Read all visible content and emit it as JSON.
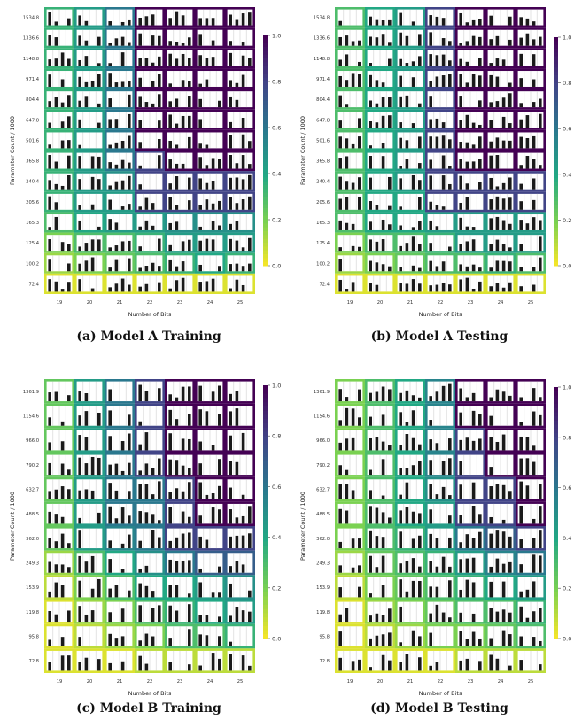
{
  "colormap": [
    "#fde725",
    "#7ad151",
    "#22a884",
    "#2a788e",
    "#414487",
    "#440154"
  ],
  "chart_data": [
    {
      "type": "heatmap",
      "caption": "(a) Model A Training",
      "xlabel": "Number of Bits",
      "ylabel": "Parameter Count / 1000",
      "x": [
        "19",
        "20",
        "21",
        "22",
        "23",
        "24",
        "25"
      ],
      "y": [
        "1534.8",
        "1336.6",
        "1148.8",
        "971.4",
        "804.4",
        "647.8",
        "501.6",
        "365.8",
        "240.4",
        "205.6",
        "165.3",
        "125.4",
        "100.2",
        "72.4"
      ],
      "colorbar": {
        "min": 0.0,
        "max": 1.0,
        "ticks": [
          "0.0",
          "0.2",
          "0.4",
          "0.6",
          "0.8",
          "1.0"
        ]
      },
      "values": [
        [
          0.35,
          0.45,
          0.6,
          1.0,
          1.0,
          1.0,
          1.0
        ],
        [
          0.35,
          0.45,
          0.6,
          1.0,
          1.0,
          1.0,
          1.0
        ],
        [
          0.35,
          0.45,
          0.6,
          1.0,
          1.0,
          1.0,
          1.0
        ],
        [
          0.35,
          0.45,
          0.6,
          1.0,
          1.0,
          1.0,
          1.0
        ],
        [
          0.35,
          0.45,
          0.6,
          1.0,
          1.0,
          1.0,
          1.0
        ],
        [
          0.35,
          0.45,
          0.6,
          1.0,
          1.0,
          1.0,
          1.0
        ],
        [
          0.35,
          0.45,
          0.6,
          1.0,
          1.0,
          1.0,
          1.0
        ],
        [
          0.35,
          0.45,
          0.6,
          0.8,
          1.0,
          1.0,
          1.0
        ],
        [
          0.35,
          0.45,
          0.5,
          0.8,
          0.8,
          0.8,
          0.8
        ],
        [
          0.35,
          0.45,
          0.45,
          0.8,
          0.8,
          0.8,
          0.8
        ],
        [
          0.3,
          0.4,
          0.45,
          0.45,
          0.5,
          0.5,
          0.5
        ],
        [
          0.2,
          0.3,
          0.3,
          0.35,
          0.45,
          0.45,
          0.45
        ],
        [
          0.15,
          0.2,
          0.25,
          0.3,
          0.35,
          0.4,
          0.35
        ],
        [
          0.05,
          0.05,
          0.05,
          0.05,
          0.05,
          0.05,
          0.05
        ]
      ]
    },
    {
      "type": "heatmap",
      "caption": "(b) Model A Testing",
      "xlabel": "Number of Bits",
      "ylabel": "Parameter Count / 1000",
      "x": [
        "19",
        "20",
        "21",
        "22",
        "23",
        "24",
        "25"
      ],
      "y": [
        "1534.8",
        "1336.6",
        "1148.8",
        "971.4",
        "804.4",
        "647.8",
        "501.6",
        "365.8",
        "240.4",
        "205.6",
        "165.3",
        "125.4",
        "100.2",
        "72.4"
      ],
      "colorbar": {
        "min": 0.0,
        "max": 1.0,
        "ticks": [
          "0.0",
          "0.2",
          "0.4",
          "0.6",
          "0.8",
          "1.0"
        ]
      },
      "values": [
        [
          0.3,
          0.4,
          0.45,
          0.8,
          1.0,
          1.0,
          1.0
        ],
        [
          0.3,
          0.4,
          0.45,
          0.8,
          1.0,
          1.0,
          1.0
        ],
        [
          0.3,
          0.4,
          0.45,
          0.8,
          1.0,
          1.0,
          1.0
        ],
        [
          0.3,
          0.4,
          0.45,
          0.8,
          1.0,
          1.0,
          1.0
        ],
        [
          0.3,
          0.4,
          0.45,
          0.8,
          1.0,
          1.0,
          1.0
        ],
        [
          0.3,
          0.4,
          0.45,
          0.8,
          1.0,
          1.0,
          1.0
        ],
        [
          0.3,
          0.4,
          0.45,
          0.8,
          1.0,
          1.0,
          1.0
        ],
        [
          0.3,
          0.4,
          0.45,
          0.8,
          1.0,
          1.0,
          1.0
        ],
        [
          0.3,
          0.4,
          0.45,
          0.8,
          0.8,
          0.8,
          0.8
        ],
        [
          0.3,
          0.4,
          0.4,
          0.8,
          0.8,
          0.8,
          0.8
        ],
        [
          0.3,
          0.4,
          0.4,
          0.45,
          0.45,
          0.45,
          0.45
        ],
        [
          0.2,
          0.3,
          0.3,
          0.35,
          0.45,
          0.45,
          0.45
        ],
        [
          0.15,
          0.2,
          0.25,
          0.3,
          0.3,
          0.35,
          0.3
        ],
        [
          0.05,
          0.05,
          0.05,
          0.05,
          0.05,
          0.05,
          0.05
        ]
      ]
    },
    {
      "type": "heatmap",
      "caption": "(c) Model B Training",
      "xlabel": "Number of Bits",
      "ylabel": "Parameter Count / 1000",
      "x": [
        "19",
        "20",
        "21",
        "22",
        "23",
        "24",
        "25"
      ],
      "y": [
        "1361.9",
        "1154.6",
        "966.0",
        "790.2",
        "632.7",
        "488.5",
        "362.0",
        "249.3",
        "153.9",
        "119.8",
        "95.8",
        "72.8"
      ],
      "colorbar": {
        "min": 0.0,
        "max": 1.0,
        "ticks": [
          "0.0",
          "0.2",
          "0.4",
          "0.6",
          "0.8",
          "1.0"
        ]
      },
      "values": [
        [
          0.25,
          0.45,
          0.6,
          0.8,
          1.0,
          1.0,
          1.0
        ],
        [
          0.25,
          0.45,
          0.6,
          0.8,
          1.0,
          1.0,
          1.0
        ],
        [
          0.25,
          0.45,
          0.6,
          0.8,
          1.0,
          1.0,
          1.0
        ],
        [
          0.25,
          0.45,
          0.6,
          0.8,
          1.0,
          1.0,
          1.0
        ],
        [
          0.25,
          0.45,
          0.6,
          0.6,
          0.8,
          1.0,
          1.0
        ],
        [
          0.25,
          0.45,
          0.6,
          0.6,
          0.8,
          1.0,
          1.0
        ],
        [
          0.25,
          0.45,
          0.55,
          0.6,
          0.8,
          0.8,
          0.8
        ],
        [
          0.15,
          0.3,
          0.4,
          0.5,
          0.6,
          0.7,
          0.7
        ],
        [
          0.1,
          0.2,
          0.3,
          0.4,
          0.4,
          0.45,
          0.5
        ],
        [
          0.05,
          0.15,
          0.2,
          0.3,
          0.35,
          0.4,
          0.45
        ],
        [
          0.05,
          0.1,
          0.15,
          0.2,
          0.3,
          0.3,
          0.35
        ],
        [
          0.05,
          0.05,
          0.05,
          0.1,
          0.1,
          0.1,
          0.1
        ]
      ]
    },
    {
      "type": "heatmap",
      "caption": "(d) Model B Testing",
      "xlabel": "Number of Bits",
      "ylabel": "Parameter Count / 1000",
      "x": [
        "19",
        "20",
        "21",
        "22",
        "23",
        "24",
        "25"
      ],
      "y": [
        "1361.9",
        "1154.6",
        "966.0",
        "790.2",
        "632.7",
        "488.5",
        "362.0",
        "249.3",
        "153.9",
        "119.8",
        "95.8",
        "72.8"
      ],
      "colorbar": {
        "min": 0.0,
        "max": 1.0,
        "ticks": [
          "0.0",
          "0.2",
          "0.4",
          "0.6",
          "0.8",
          "1.0"
        ]
      },
      "values": [
        [
          0.2,
          0.3,
          0.4,
          0.55,
          1.0,
          1.0,
          1.0
        ],
        [
          0.2,
          0.3,
          0.4,
          0.55,
          1.0,
          1.0,
          1.0
        ],
        [
          0.2,
          0.3,
          0.4,
          0.55,
          0.8,
          1.0,
          1.0
        ],
        [
          0.2,
          0.3,
          0.4,
          0.55,
          0.8,
          1.0,
          1.0
        ],
        [
          0.2,
          0.3,
          0.4,
          0.5,
          0.8,
          0.8,
          1.0
        ],
        [
          0.2,
          0.3,
          0.4,
          0.45,
          0.8,
          0.8,
          1.0
        ],
        [
          0.2,
          0.3,
          0.35,
          0.45,
          0.6,
          0.7,
          0.8
        ],
        [
          0.15,
          0.25,
          0.3,
          0.35,
          0.45,
          0.55,
          0.6
        ],
        [
          0.1,
          0.2,
          0.25,
          0.3,
          0.35,
          0.4,
          0.45
        ],
        [
          0.05,
          0.15,
          0.2,
          0.25,
          0.3,
          0.3,
          0.35
        ],
        [
          0.05,
          0.1,
          0.15,
          0.2,
          0.2,
          0.25,
          0.3
        ],
        [
          0.05,
          0.05,
          0.05,
          0.05,
          0.1,
          0.1,
          0.1
        ]
      ]
    }
  ]
}
